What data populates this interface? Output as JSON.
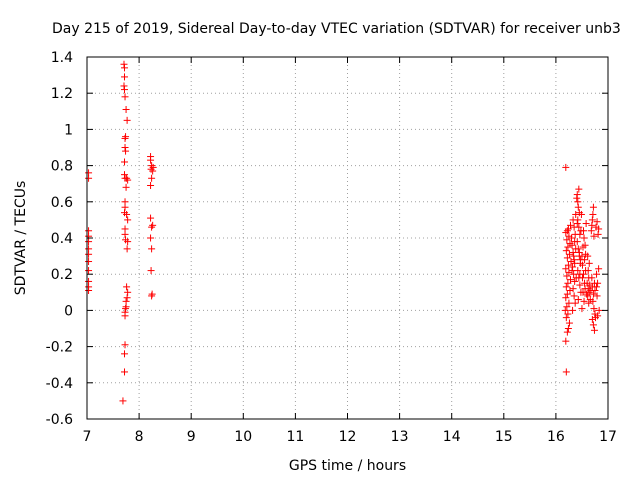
{
  "chart_data": {
    "type": "scatter",
    "title": "Day 215 of 2019, Sidereal Day-to-day VTEC variation (SDTVAR) for receiver unb3",
    "xlabel": "GPS time / hours",
    "ylabel": "SDTVAR / TECUs",
    "xlim": [
      7,
      17
    ],
    "ylim": [
      -0.6,
      1.4
    ],
    "xticks": [
      7,
      8,
      9,
      10,
      11,
      12,
      13,
      14,
      15,
      16,
      17
    ],
    "yticks": [
      -0.6,
      -0.4,
      -0.2,
      0,
      0.2,
      0.4,
      0.6,
      0.8,
      1,
      1.2,
      1.4
    ],
    "xtick_labels": [
      "7",
      "8",
      "9",
      "10",
      "11",
      "12",
      "13",
      "14",
      "15",
      "16",
      "17"
    ],
    "ytick_labels": [
      "-0.6",
      "-0.4",
      "-0.2",
      "0",
      "0.2",
      "0.4",
      "0.6",
      "0.8",
      "1",
      "1.2",
      "1.4"
    ],
    "grid": true,
    "marker": "+",
    "color": "#ff0000",
    "series": [
      {
        "name": "SDTVAR",
        "points": [
          [
            7.03,
            0.76
          ],
          [
            7.03,
            0.73
          ],
          [
            7.03,
            0.44
          ],
          [
            7.03,
            0.41
          ],
          [
            7.03,
            0.38
          ],
          [
            7.03,
            0.34
          ],
          [
            7.03,
            0.31
          ],
          [
            7.03,
            0.27
          ],
          [
            7.03,
            0.22
          ],
          [
            7.03,
            0.16
          ],
          [
            7.03,
            0.13
          ],
          [
            7.03,
            0.11
          ],
          [
            7.71,
            1.36
          ],
          [
            7.72,
            1.34
          ],
          [
            7.72,
            1.29
          ],
          [
            7.71,
            1.24
          ],
          [
            7.72,
            1.22
          ],
          [
            7.73,
            1.18
          ],
          [
            7.75,
            1.11
          ],
          [
            7.77,
            1.05
          ],
          [
            7.74,
            0.96
          ],
          [
            7.73,
            0.95
          ],
          [
            7.73,
            0.9
          ],
          [
            7.74,
            0.88
          ],
          [
            7.72,
            0.82
          ],
          [
            7.72,
            0.75
          ],
          [
            7.73,
            0.73
          ],
          [
            7.76,
            0.73
          ],
          [
            7.78,
            0.72
          ],
          [
            7.75,
            0.68
          ],
          [
            7.73,
            0.6
          ],
          [
            7.73,
            0.57
          ],
          [
            7.72,
            0.54
          ],
          [
            7.76,
            0.53
          ],
          [
            7.78,
            0.5
          ],
          [
            7.73,
            0.45
          ],
          [
            7.73,
            0.42
          ],
          [
            7.74,
            0.39
          ],
          [
            7.78,
            0.38
          ],
          [
            7.77,
            0.34
          ],
          [
            7.76,
            0.13
          ],
          [
            7.78,
            0.1
          ],
          [
            7.77,
            0.07
          ],
          [
            7.75,
            0.05
          ],
          [
            7.75,
            0.02
          ],
          [
            7.74,
            0.01
          ],
          [
            7.73,
            -0.01
          ],
          [
            7.73,
            -0.03
          ],
          [
            7.73,
            -0.19
          ],
          [
            7.72,
            -0.24
          ],
          [
            7.72,
            -0.34
          ],
          [
            7.69,
            -0.5
          ],
          [
            8.22,
            0.85
          ],
          [
            8.22,
            0.83
          ],
          [
            8.24,
            0.8
          ],
          [
            8.27,
            0.79
          ],
          [
            8.23,
            0.78
          ],
          [
            8.26,
            0.77
          ],
          [
            8.24,
            0.73
          ],
          [
            8.22,
            0.69
          ],
          [
            8.22,
            0.51
          ],
          [
            8.26,
            0.47
          ],
          [
            8.24,
            0.46
          ],
          [
            8.22,
            0.4
          ],
          [
            8.24,
            0.34
          ],
          [
            8.23,
            0.22
          ],
          [
            8.25,
            0.09
          ],
          [
            8.24,
            0.08
          ],
          [
            16.19,
            0.79
          ],
          [
            16.2,
            -0.34
          ],
          [
            16.19,
            -0.17
          ],
          [
            16.22,
            -0.12
          ],
          [
            16.24,
            -0.1
          ],
          [
            16.26,
            -0.07
          ],
          [
            16.2,
            -0.04
          ],
          [
            16.23,
            -0.02
          ],
          [
            16.18,
            0.0
          ],
          [
            16.21,
            0.02
          ],
          [
            16.25,
            0.04
          ],
          [
            16.19,
            0.07
          ],
          [
            16.22,
            0.09
          ],
          [
            16.27,
            0.11
          ],
          [
            16.2,
            0.13
          ],
          [
            16.23,
            0.15
          ],
          [
            16.28,
            0.17
          ],
          [
            16.21,
            0.19
          ],
          [
            16.25,
            0.21
          ],
          [
            16.19,
            0.23
          ],
          [
            16.24,
            0.25
          ],
          [
            16.29,
            0.27
          ],
          [
            16.22,
            0.29
          ],
          [
            16.26,
            0.31
          ],
          [
            16.2,
            0.33
          ],
          [
            16.23,
            0.35
          ],
          [
            16.27,
            0.37
          ],
          [
            16.21,
            0.39
          ],
          [
            16.25,
            0.41
          ],
          [
            16.19,
            0.43
          ],
          [
            16.24,
            0.45
          ],
          [
            16.28,
            0.47
          ],
          [
            16.22,
            0.44
          ],
          [
            16.3,
            0.4
          ],
          [
            16.31,
            0.36
          ],
          [
            16.33,
            0.32
          ],
          [
            16.35,
            0.28
          ],
          [
            16.32,
            0.24
          ],
          [
            16.34,
            0.2
          ],
          [
            16.36,
            0.16
          ],
          [
            16.33,
            0.12
          ],
          [
            16.35,
            0.08
          ],
          [
            16.37,
            0.04
          ],
          [
            16.32,
            0.0
          ],
          [
            16.34,
            0.3
          ],
          [
            16.36,
            0.26
          ],
          [
            16.38,
            0.34
          ],
          [
            16.31,
            0.22
          ],
          [
            16.39,
            0.18
          ],
          [
            16.37,
            0.42
          ],
          [
            16.35,
            0.46
          ],
          [
            16.33,
            0.5
          ],
          [
            16.38,
            0.53
          ],
          [
            16.36,
            0.38
          ],
          [
            16.4,
            0.62
          ],
          [
            16.42,
            0.6
          ],
          [
            16.44,
            0.67
          ],
          [
            16.41,
            0.64
          ],
          [
            16.43,
            0.57
          ],
          [
            16.45,
            0.54
          ],
          [
            16.42,
            0.5
          ],
          [
            16.44,
            0.46
          ],
          [
            16.46,
            0.42
          ],
          [
            16.41,
            0.38
          ],
          [
            16.43,
            0.34
          ],
          [
            16.45,
            0.3
          ],
          [
            16.47,
            0.26
          ],
          [
            16.42,
            0.22
          ],
          [
            16.44,
            0.18
          ],
          [
            16.46,
            0.14
          ],
          [
            16.48,
            0.1
          ],
          [
            16.43,
            0.06
          ],
          [
            16.45,
            0.32
          ],
          [
            16.47,
            0.28
          ],
          [
            16.49,
            0.53
          ],
          [
            16.41,
            0.48
          ],
          [
            16.48,
            0.44
          ],
          [
            16.46,
            0.2
          ],
          [
            16.5,
            0.3
          ],
          [
            16.52,
            0.35
          ],
          [
            16.54,
            0.4
          ],
          [
            16.51,
            0.25
          ],
          [
            16.53,
            0.2
          ],
          [
            16.55,
            0.15
          ],
          [
            16.52,
            0.1
          ],
          [
            16.54,
            0.05
          ],
          [
            16.56,
            0.12
          ],
          [
            16.51,
            0.18
          ],
          [
            16.57,
            0.22
          ],
          [
            16.55,
            0.28
          ],
          [
            16.53,
            0.44
          ],
          [
            16.58,
            0.48
          ],
          [
            16.56,
            0.36
          ],
          [
            16.59,
            0.09
          ],
          [
            16.5,
            0.01
          ],
          [
            16.57,
            0.31
          ],
          [
            16.6,
            0.15
          ],
          [
            16.62,
            0.12
          ],
          [
            16.64,
            0.1
          ],
          [
            16.61,
            0.08
          ],
          [
            16.63,
            0.18
          ],
          [
            16.65,
            0.14
          ],
          [
            16.62,
            0.22
          ],
          [
            16.66,
            0.06
          ],
          [
            16.64,
            0.26
          ],
          [
            16.61,
            0.3
          ],
          [
            16.67,
            0.11
          ],
          [
            16.63,
            0.04
          ],
          [
            16.68,
            0.44
          ],
          [
            16.7,
            0.5
          ],
          [
            16.72,
            0.57
          ],
          [
            16.69,
            0.47
          ],
          [
            16.71,
            0.53
          ],
          [
            16.73,
            0.41
          ],
          [
            16.7,
            0.13
          ],
          [
            16.72,
            0.09
          ],
          [
            16.74,
            0.15
          ],
          [
            16.71,
            0.05
          ],
          [
            16.73,
            0.01
          ],
          [
            16.75,
            -0.02
          ],
          [
            16.7,
            -0.05
          ],
          [
            16.72,
            -0.08
          ],
          [
            16.74,
            -0.11
          ],
          [
            16.76,
            -0.04
          ],
          [
            16.69,
            0.18
          ],
          [
            16.75,
            0.11
          ],
          [
            16.77,
            0.46
          ],
          [
            16.79,
            0.49
          ],
          [
            16.81,
            0.42
          ],
          [
            16.78,
            0.2
          ],
          [
            16.8,
            0.15
          ],
          [
            16.82,
            0.23
          ],
          [
            16.79,
            0.08
          ],
          [
            16.83,
            0.0
          ],
          [
            16.8,
            -0.03
          ],
          [
            16.78,
            0.13
          ],
          [
            16.82,
            0.45
          ]
        ]
      }
    ]
  }
}
